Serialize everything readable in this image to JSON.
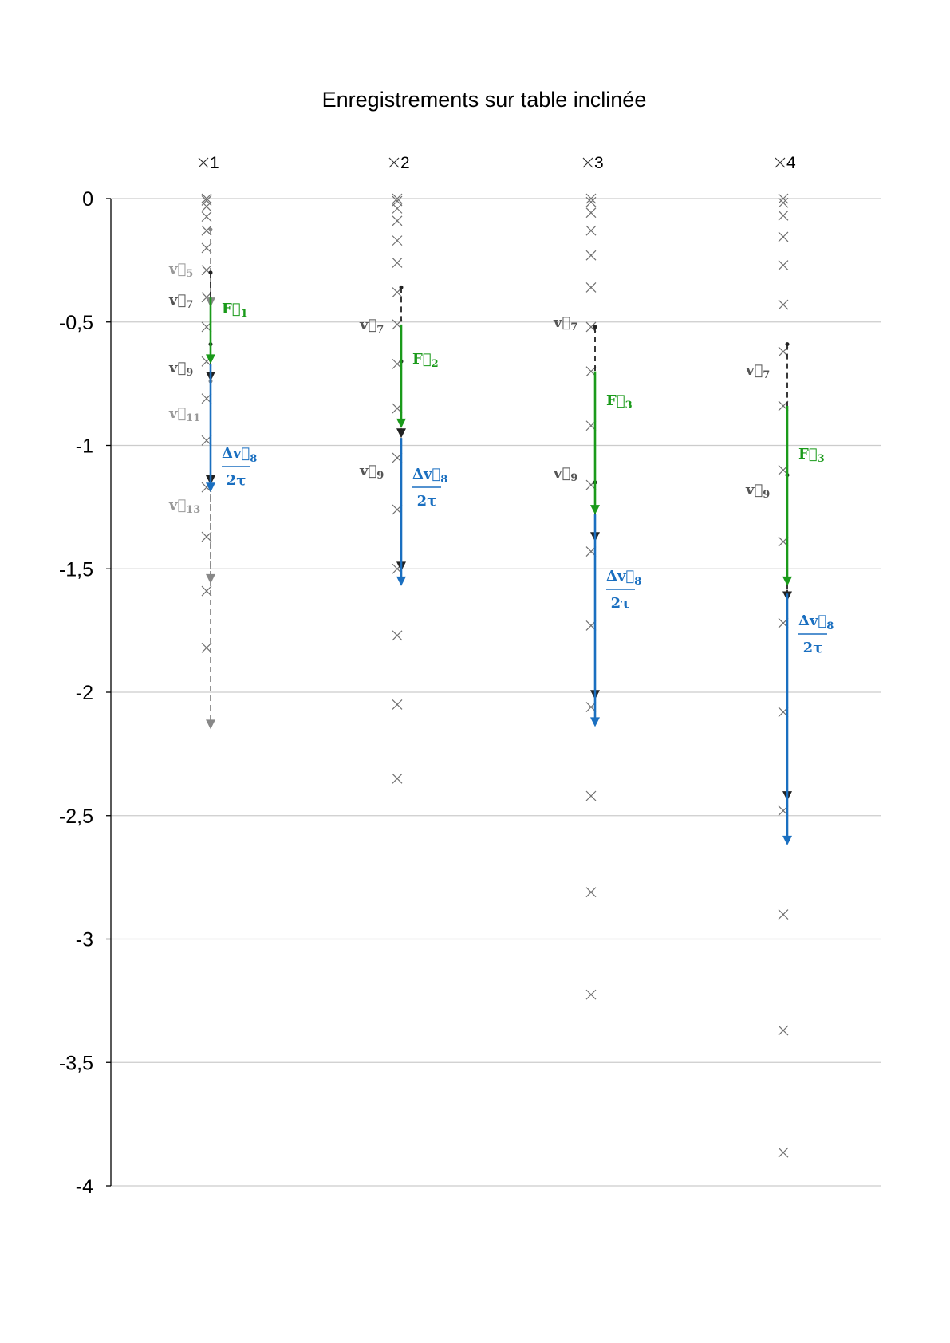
{
  "chart_data": {
    "type": "scatter",
    "title": "Enregistrements sur table inclinée",
    "xlabel": "",
    "ylabel": "",
    "ylim": [
      -4,
      0
    ],
    "y_ticks": [
      "0",
      "-0,5",
      "-1",
      "-1,5",
      "-2",
      "-2,5",
      "-3",
      "-3,5",
      "-4"
    ],
    "y_tick_values": [
      0,
      -0.5,
      -1,
      -1.5,
      -2,
      -2.5,
      -3,
      -3.5,
      -4
    ],
    "grid": true,
    "marker": "x",
    "series": [
      {
        "name": "×1",
        "values": [
          0,
          -0.008,
          -0.032,
          -0.073,
          -0.13,
          -0.2,
          -0.29,
          -0.4,
          -0.52,
          -0.66,
          -0.81,
          -0.98,
          -1.17,
          -1.37,
          -1.59,
          -1.82
        ]
      },
      {
        "name": "×2",
        "values": [
          0,
          -0.01,
          -0.04,
          -0.09,
          -0.17,
          -0.26,
          -0.38,
          -0.51,
          -0.67,
          -0.85,
          -1.05,
          -1.26,
          -1.5,
          -1.77,
          -2.05,
          -2.35
        ]
      },
      {
        "name": "×3",
        "values": [
          0,
          -0.014,
          -0.057,
          -0.13,
          -0.23,
          -0.36,
          -0.52,
          -0.7,
          -0.92,
          -1.16,
          -1.43,
          -1.73,
          -2.06,
          -2.42,
          -2.81,
          -3.225
        ]
      },
      {
        "name": "×4",
        "values": [
          0,
          -0.017,
          -0.069,
          -0.155,
          -0.27,
          -0.43,
          -0.62,
          -0.84,
          -1.1,
          -1.39,
          -1.72,
          -2.08,
          -2.48,
          -2.9,
          -3.37,
          -3.865
        ]
      }
    ],
    "vectors": [
      {
        "series": 0,
        "kind": "velocity-gray",
        "label": "v⃗",
        "sub": "5",
        "from": -0.126,
        "to": -0.44
      },
      {
        "series": 0,
        "kind": "velocity",
        "label": "v⃗",
        "sub": "7",
        "from": -0.3,
        "to": -0.74
      },
      {
        "series": 0,
        "kind": "velocity",
        "label": "v⃗",
        "sub": "9",
        "from": -0.59,
        "to": -1.16
      },
      {
        "series": 0,
        "kind": "velocity-gray",
        "label": "v⃗",
        "sub": "11",
        "from": -0.74,
        "to": -1.56
      },
      {
        "series": 0,
        "kind": "velocity-gray",
        "label": "v⃗",
        "sub": "13",
        "from": -1.16,
        "to": -2.15
      },
      {
        "series": 0,
        "kind": "force",
        "label": "F⃗",
        "sub": "1",
        "from": -0.4,
        "to": -0.67
      },
      {
        "series": 0,
        "kind": "accel",
        "label": "Δv⃗",
        "sub": "8",
        "den": "2τ",
        "from": -0.67,
        "to": -1.19
      },
      {
        "series": 1,
        "kind": "velocity",
        "label": "v⃗",
        "sub": "7",
        "from": -0.36,
        "to": -0.97
      },
      {
        "series": 1,
        "kind": "velocity",
        "label": "v⃗",
        "sub": "9",
        "from": -0.66,
        "to": -1.51
      },
      {
        "series": 1,
        "kind": "force",
        "label": "F⃗",
        "sub": "2",
        "from": -0.51,
        "to": -0.93
      },
      {
        "series": 1,
        "kind": "accel",
        "label": "Δv⃗",
        "sub": "8",
        "den": "2τ",
        "from": -0.97,
        "to": -1.57
      },
      {
        "series": 2,
        "kind": "velocity",
        "label": "v⃗",
        "sub": "7",
        "from": -0.52,
        "to": -1.39
      },
      {
        "series": 2,
        "kind": "velocity",
        "label": "v⃗",
        "sub": "9",
        "from": -1.15,
        "to": -2.03
      },
      {
        "series": 2,
        "kind": "force",
        "label": "F⃗",
        "sub": "3",
        "from": -0.7,
        "to": -1.28
      },
      {
        "series": 2,
        "kind": "accel",
        "label": "Δv⃗",
        "sub": "8",
        "den": "2τ",
        "from": -1.28,
        "to": -2.14
      },
      {
        "series": 3,
        "kind": "velocity",
        "label": "v⃗",
        "sub": "7",
        "from": -0.59,
        "to": -1.63
      },
      {
        "series": 3,
        "kind": "velocity",
        "label": "v⃗",
        "sub": "9",
        "from": -1.12,
        "to": -2.44
      },
      {
        "series": 3,
        "kind": "force",
        "label": "F⃗",
        "sub": "3",
        "from": -0.84,
        "to": -1.57
      },
      {
        "series": 3,
        "kind": "accel",
        "label": "Δv⃗",
        "sub": "8",
        "den": "2τ",
        "from": -1.6,
        "to": -2.62
      }
    ],
    "colors": {
      "force": "#1a9a1a",
      "accel": "#1a6fc0",
      "velocity": "#222222",
      "velocity-gray": "#888888",
      "marker": "#707070",
      "grid": "#cccccc"
    }
  }
}
